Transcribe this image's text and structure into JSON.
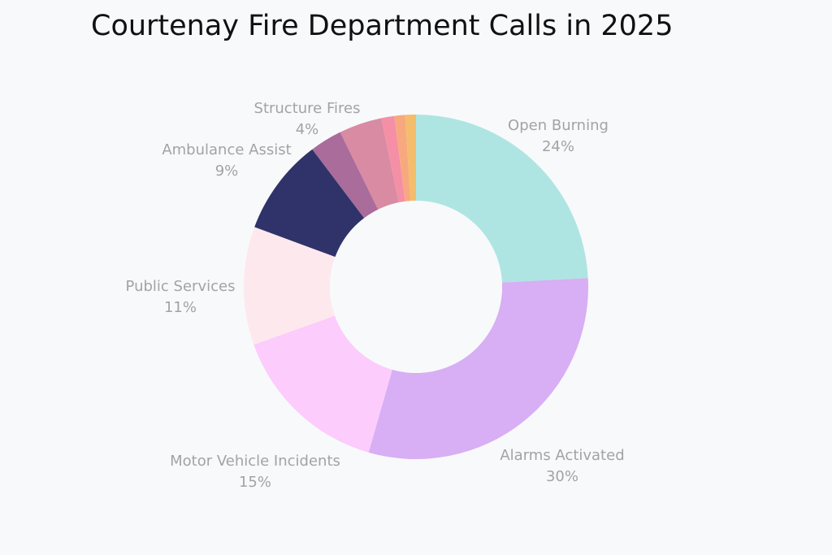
{
  "chart_data": {
    "type": "pie",
    "title": "Courtenay Fire Department Calls in 2025",
    "donut": true,
    "series": [
      {
        "name": "Open Burning",
        "value": 24,
        "label": "24%",
        "color": "#aee5e3"
      },
      {
        "name": "Alarms Activated",
        "value": 30,
        "label": "30%",
        "color": "#d8aef4"
      },
      {
        "name": "Motor Vehicle Incidents",
        "value": 15,
        "label": "15%",
        "color": "#fcccfc"
      },
      {
        "name": "Public Services",
        "value": 11,
        "label": "11%",
        "color": "#fde9ed"
      },
      {
        "name": "Ambulance Assist",
        "value": 9,
        "label": "9%",
        "color": "#2f336a"
      },
      {
        "name": "",
        "value": 3,
        "label": "",
        "color": "#a96c9b"
      },
      {
        "name": "Structure Fires",
        "value": 4,
        "label": "4%",
        "color": "#d88ba3"
      },
      {
        "name": "",
        "value": 1.2,
        "label": "",
        "color": "#f48fa6"
      },
      {
        "name": "",
        "value": 1.0,
        "label": "",
        "color": "#f8a87e"
      },
      {
        "name": "",
        "value": 1.0,
        "label": "",
        "color": "#f4bd6b"
      }
    ]
  }
}
